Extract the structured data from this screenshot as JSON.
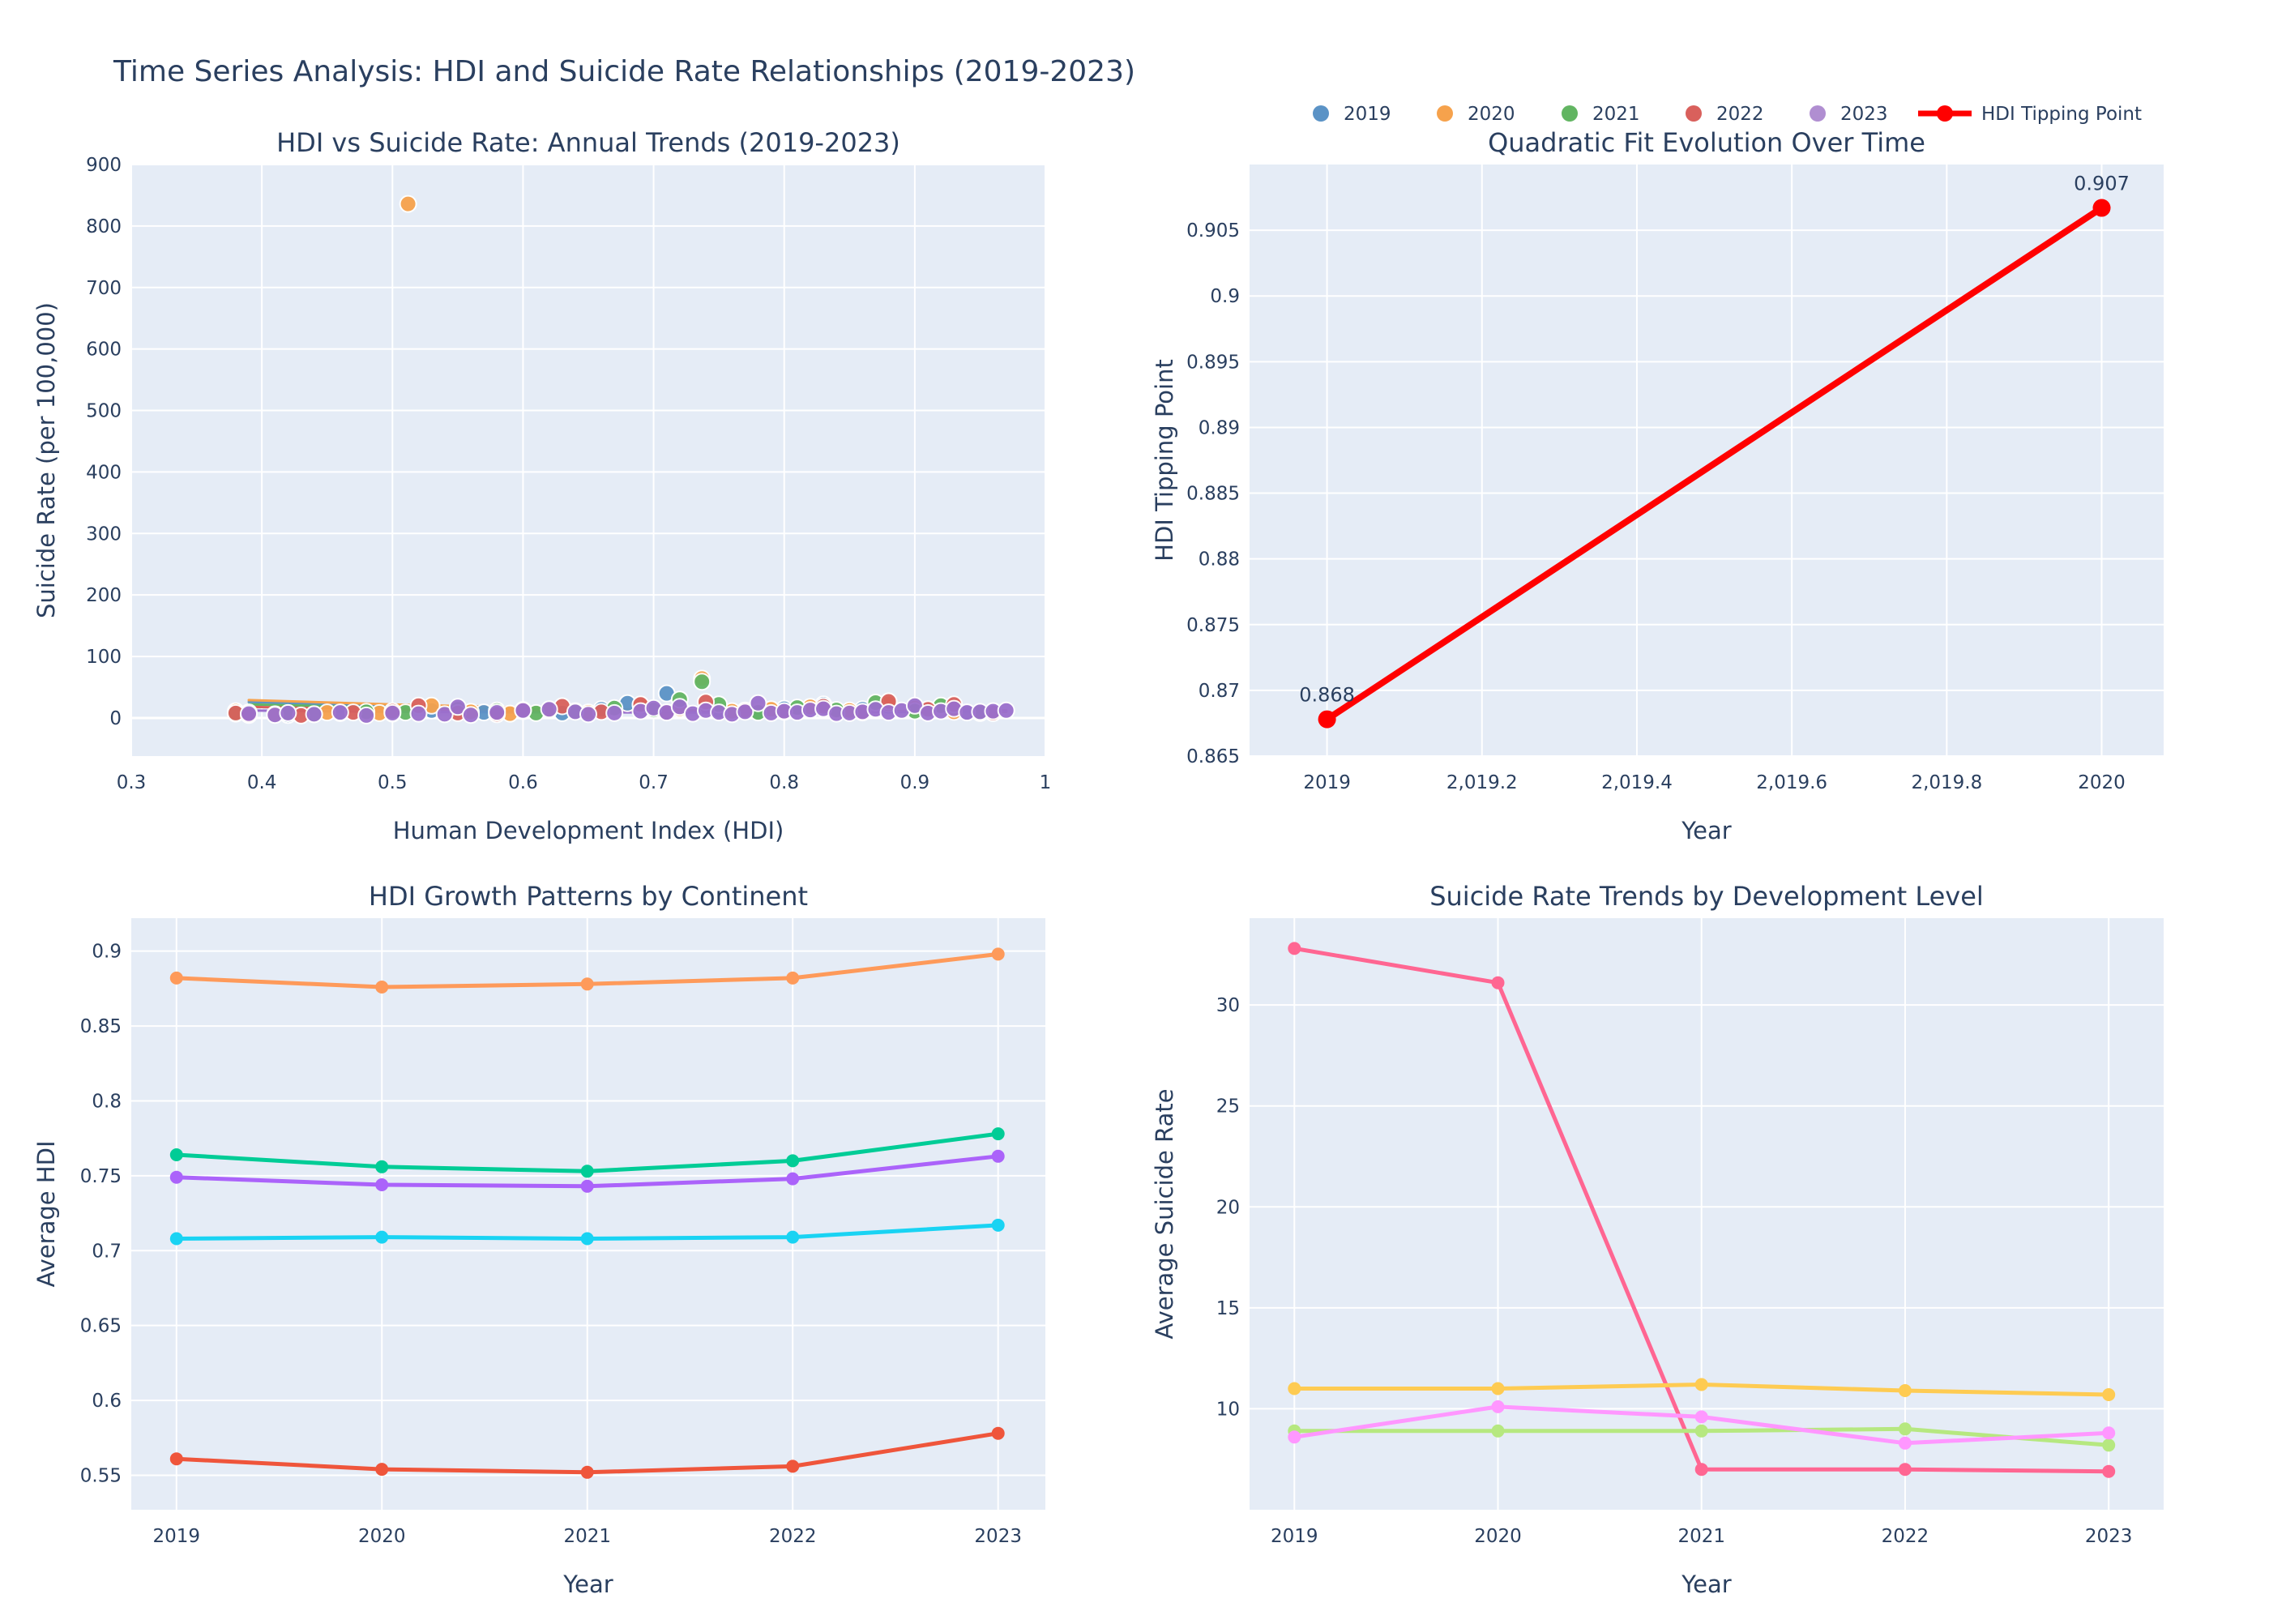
{
  "title": "Time Series Analysis: HDI and Suicide Rate Relationships (2019-2023)",
  "legend": {
    "items": [
      {
        "label": "2019",
        "color": "#5b93c6",
        "kind": "marker"
      },
      {
        "label": "2020",
        "color": "#f6a24c",
        "kind": "marker"
      },
      {
        "label": "2021",
        "color": "#62b562",
        "kind": "marker"
      },
      {
        "label": "2022",
        "color": "#d9605c",
        "kind": "marker"
      },
      {
        "label": "2023",
        "color": "#b08ed1",
        "kind": "marker"
      },
      {
        "label": "HDI Tipping Point",
        "color": "#ff0000",
        "kind": "line"
      }
    ]
  },
  "chart_data": [
    {
      "type": "scatter",
      "title": "HDI vs Suicide Rate: Annual Trends (2019-2023)",
      "xlabel": "Human Development Index (HDI)",
      "ylabel": "Suicide Rate (per 100,000)",
      "xlim": [
        0.3,
        1.0
      ],
      "ylim": [
        -62,
        900
      ],
      "xticks": [
        0.3,
        0.4,
        0.5,
        0.6,
        0.7,
        0.8,
        0.9,
        1
      ],
      "xtick_labels": [
        "0.3",
        "0.4",
        "0.5",
        "0.6",
        "0.7",
        "0.8",
        "0.9",
        "1"
      ],
      "yticks": [
        0,
        100,
        200,
        300,
        400,
        500,
        600,
        700,
        800,
        900
      ],
      "ytick_labels": [
        "0",
        "100",
        "200",
        "300",
        "400",
        "500",
        "600",
        "700",
        "800",
        "900"
      ],
      "series": [
        {
          "name": "2019",
          "color": "#5b93c6",
          "points": [
            [
              0.39,
              9
            ],
            [
              0.42,
              5
            ],
            [
              0.46,
              8
            ],
            [
              0.5,
              7
            ],
            [
              0.53,
              12
            ],
            [
              0.57,
              9
            ],
            [
              0.6,
              11
            ],
            [
              0.63,
              8
            ],
            [
              0.66,
              14
            ],
            [
              0.68,
              24
            ],
            [
              0.71,
              40
            ],
            [
              0.72,
              18
            ],
            [
              0.75,
              12
            ],
            [
              0.78,
              10
            ],
            [
              0.8,
              15
            ],
            [
              0.83,
              22
            ],
            [
              0.86,
              14
            ],
            [
              0.88,
              19
            ],
            [
              0.91,
              12
            ],
            [
              0.94,
              9
            ],
            [
              0.96,
              11
            ]
          ]
        },
        {
          "name": "2020",
          "color": "#f6a24c",
          "points": [
            [
              0.38,
              11
            ],
            [
              0.41,
              6
            ],
            [
              0.45,
              9
            ],
            [
              0.49,
              8
            ],
            [
              0.512,
              836
            ],
            [
              0.53,
              20
            ],
            [
              0.56,
              10
            ],
            [
              0.59,
              7
            ],
            [
              0.62,
              13
            ],
            [
              0.65,
              9
            ],
            [
              0.69,
              21
            ],
            [
              0.72,
              15
            ],
            [
              0.737,
              64
            ],
            [
              0.76,
              11
            ],
            [
              0.79,
              14
            ],
            [
              0.82,
              18
            ],
            [
              0.85,
              12
            ],
            [
              0.88,
              23
            ],
            [
              0.9,
              16
            ],
            [
              0.93,
              10
            ],
            [
              0.95,
              8
            ]
          ]
        },
        {
          "name": "2021",
          "color": "#62b562",
          "points": [
            [
              0.38,
              7
            ],
            [
              0.42,
              8
            ],
            [
              0.44,
              6
            ],
            [
              0.48,
              10
            ],
            [
              0.51,
              9
            ],
            [
              0.55,
              14
            ],
            [
              0.58,
              12
            ],
            [
              0.61,
              8
            ],
            [
              0.64,
              11
            ],
            [
              0.67,
              16
            ],
            [
              0.7,
              13
            ],
            [
              0.72,
              30
            ],
            [
              0.737,
              59
            ],
            [
              0.75,
              22
            ],
            [
              0.78,
              9
            ],
            [
              0.81,
              17
            ],
            [
              0.84,
              13
            ],
            [
              0.87,
              25
            ],
            [
              0.9,
              11
            ],
            [
              0.92,
              20
            ],
            [
              0.95,
              9
            ]
          ]
        },
        {
          "name": "2022",
          "color": "#d9605c",
          "points": [
            [
              0.38,
              8
            ],
            [
              0.39,
              5
            ],
            [
              0.43,
              4
            ],
            [
              0.47,
              9
            ],
            [
              0.5,
              11
            ],
            [
              0.52,
              20
            ],
            [
              0.55,
              8
            ],
            [
              0.58,
              6
            ],
            [
              0.6,
              13
            ],
            [
              0.63,
              19
            ],
            [
              0.66,
              10
            ],
            [
              0.69,
              22
            ],
            [
              0.71,
              9
            ],
            [
              0.74,
              26
            ],
            [
              0.77,
              12
            ],
            [
              0.8,
              10
            ],
            [
              0.83,
              19
            ],
            [
              0.86,
              9
            ],
            [
              0.88,
              27
            ],
            [
              0.91,
              14
            ],
            [
              0.93,
              22
            ],
            [
              0.96,
              8
            ]
          ]
        },
        {
          "name": "2023",
          "color": "#9b6fcc",
          "points": [
            [
              0.39,
              7
            ],
            [
              0.41,
              5
            ],
            [
              0.42,
              8
            ],
            [
              0.44,
              6
            ],
            [
              0.46,
              9
            ],
            [
              0.48,
              4
            ],
            [
              0.5,
              8
            ],
            [
              0.52,
              7
            ],
            [
              0.54,
              6
            ],
            [
              0.55,
              18
            ],
            [
              0.56,
              5
            ],
            [
              0.58,
              9
            ],
            [
              0.6,
              12
            ],
            [
              0.62,
              14
            ],
            [
              0.64,
              10
            ],
            [
              0.65,
              6
            ],
            [
              0.67,
              8
            ],
            [
              0.69,
              11
            ],
            [
              0.7,
              16
            ],
            [
              0.71,
              9
            ],
            [
              0.72,
              18
            ],
            [
              0.73,
              7
            ],
            [
              0.74,
              12
            ],
            [
              0.75,
              9
            ],
            [
              0.76,
              6
            ],
            [
              0.77,
              10
            ],
            [
              0.78,
              24
            ],
            [
              0.79,
              8
            ],
            [
              0.8,
              11
            ],
            [
              0.81,
              9
            ],
            [
              0.82,
              13
            ],
            [
              0.83,
              15
            ],
            [
              0.84,
              7
            ],
            [
              0.85,
              8
            ],
            [
              0.86,
              10
            ],
            [
              0.87,
              14
            ],
            [
              0.88,
              9
            ],
            [
              0.89,
              12
            ],
            [
              0.9,
              20
            ],
            [
              0.91,
              8
            ],
            [
              0.92,
              11
            ],
            [
              0.93,
              15
            ],
            [
              0.94,
              9
            ],
            [
              0.95,
              10
            ],
            [
              0.96,
              11
            ],
            [
              0.97,
              12
            ]
          ]
        }
      ],
      "fit_lines": [
        {
          "name": "2019",
          "color": "#5b93c6",
          "x": [
            0.39,
            0.5,
            0.6,
            0.7,
            0.8,
            0.9,
            0.97
          ],
          "y": [
            26,
            20,
            16,
            13,
            11,
            10,
            10
          ]
        },
        {
          "name": "2020",
          "color": "#f6a24c",
          "x": [
            0.39,
            0.5,
            0.6,
            0.7,
            0.8,
            0.9,
            0.97
          ],
          "y": [
            29,
            22,
            17,
            13,
            11,
            10,
            10
          ]
        },
        {
          "name": "2021",
          "color": "#62b562",
          "x": [
            0.39,
            0.5,
            0.6,
            0.7,
            0.8,
            0.9,
            0.97
          ],
          "y": [
            22,
            17,
            14,
            12,
            11,
            10,
            11
          ]
        },
        {
          "name": "2022",
          "color": "#d9605c",
          "x": [
            0.39,
            0.5,
            0.6,
            0.7,
            0.8,
            0.9,
            0.97
          ],
          "y": [
            18,
            14,
            12,
            11,
            11,
            11,
            12
          ]
        },
        {
          "name": "2023",
          "color": "#9b6fcc",
          "x": [
            0.39,
            0.5,
            0.6,
            0.7,
            0.8,
            0.9,
            0.97
          ],
          "y": [
            12,
            10,
            9,
            9,
            9,
            10,
            11
          ]
        }
      ]
    },
    {
      "type": "line",
      "title": "Quadratic Fit Evolution Over Time",
      "xlabel": "Year",
      "ylabel": "HDI Tipping Point",
      "xlim": [
        2018.9,
        2020.08
      ],
      "ylim": [
        0.865,
        0.91
      ],
      "xticks": [
        2019,
        2019.2,
        2019.4,
        2019.6,
        2019.8,
        2020
      ],
      "xtick_labels": [
        "2019",
        "2,019.2",
        "2,019.4",
        "2,019.6",
        "2,019.8",
        "2020"
      ],
      "yticks": [
        0.865,
        0.87,
        0.875,
        0.88,
        0.885,
        0.89,
        0.895,
        0.9,
        0.905
      ],
      "ytick_labels": [
        "0.865",
        "0.87",
        "0.875",
        "0.88",
        "0.885",
        "0.89",
        "0.895",
        "0.9",
        "0.905"
      ],
      "series": [
        {
          "name": "HDI Tipping Point",
          "color": "#ff0000",
          "x": [
            2019,
            2020
          ],
          "values": [
            0.8678,
            0.9067
          ],
          "labels": [
            "0.868",
            "0.907"
          ]
        }
      ]
    },
    {
      "type": "line",
      "title": "HDI Growth Patterns by Continent",
      "xlabel": "Year",
      "ylabel": "Average HDI",
      "xlim": [
        2018.78,
        2023.23
      ],
      "ylim": [
        0.527,
        0.922
      ],
      "xticks": [
        2019,
        2020,
        2021,
        2022,
        2023
      ],
      "xtick_labels": [
        "2019",
        "2020",
        "2021",
        "2022",
        "2023"
      ],
      "yticks": [
        0.55,
        0.6,
        0.65,
        0.7,
        0.75,
        0.8,
        0.85,
        0.9
      ],
      "ytick_labels": [
        "0.55",
        "0.6",
        "0.65",
        "0.7",
        "0.75",
        "0.8",
        "0.85",
        "0.9"
      ],
      "x": [
        2019,
        2020,
        2021,
        2022,
        2023
      ],
      "series": [
        {
          "color": "#fe9a5a",
          "values": [
            0.882,
            0.876,
            0.878,
            0.882,
            0.898
          ]
        },
        {
          "color": "#00cc96",
          "values": [
            0.764,
            0.756,
            0.753,
            0.76,
            0.778
          ]
        },
        {
          "color": "#ab63fa",
          "values": [
            0.749,
            0.744,
            0.743,
            0.748,
            0.763
          ]
        },
        {
          "color": "#19d3f3",
          "values": [
            0.708,
            0.709,
            0.708,
            0.709,
            0.717
          ]
        },
        {
          "color": "#ef553b",
          "values": [
            0.561,
            0.554,
            0.552,
            0.556,
            0.578
          ]
        }
      ]
    },
    {
      "type": "line",
      "title": "Suicide Rate Trends by Development Level",
      "xlabel": "Year",
      "ylabel": "Average Suicide Rate",
      "xlim": [
        2018.78,
        2023.27
      ],
      "ylim": [
        5.0,
        34.3
      ],
      "xticks": [
        2019,
        2020,
        2021,
        2022,
        2023
      ],
      "xtick_labels": [
        "2019",
        "2020",
        "2021",
        "2022",
        "2023"
      ],
      "yticks": [
        10,
        15,
        20,
        25,
        30
      ],
      "ytick_labels": [
        "10",
        "15",
        "20",
        "25",
        "30"
      ],
      "x": [
        2019,
        2020,
        2021,
        2022,
        2023
      ],
      "series": [
        {
          "color": "#ff6692",
          "values": [
            32.8,
            31.1,
            7.0,
            7.0,
            6.9
          ]
        },
        {
          "color": "#fecb52",
          "values": [
            11.0,
            11.0,
            11.2,
            10.9,
            10.7
          ]
        },
        {
          "color": "#b6e880",
          "values": [
            8.9,
            8.9,
            8.9,
            9.0,
            8.2
          ]
        },
        {
          "color": "#ff97ff",
          "values": [
            8.6,
            10.1,
            9.6,
            8.3,
            8.8
          ]
        }
      ]
    }
  ]
}
